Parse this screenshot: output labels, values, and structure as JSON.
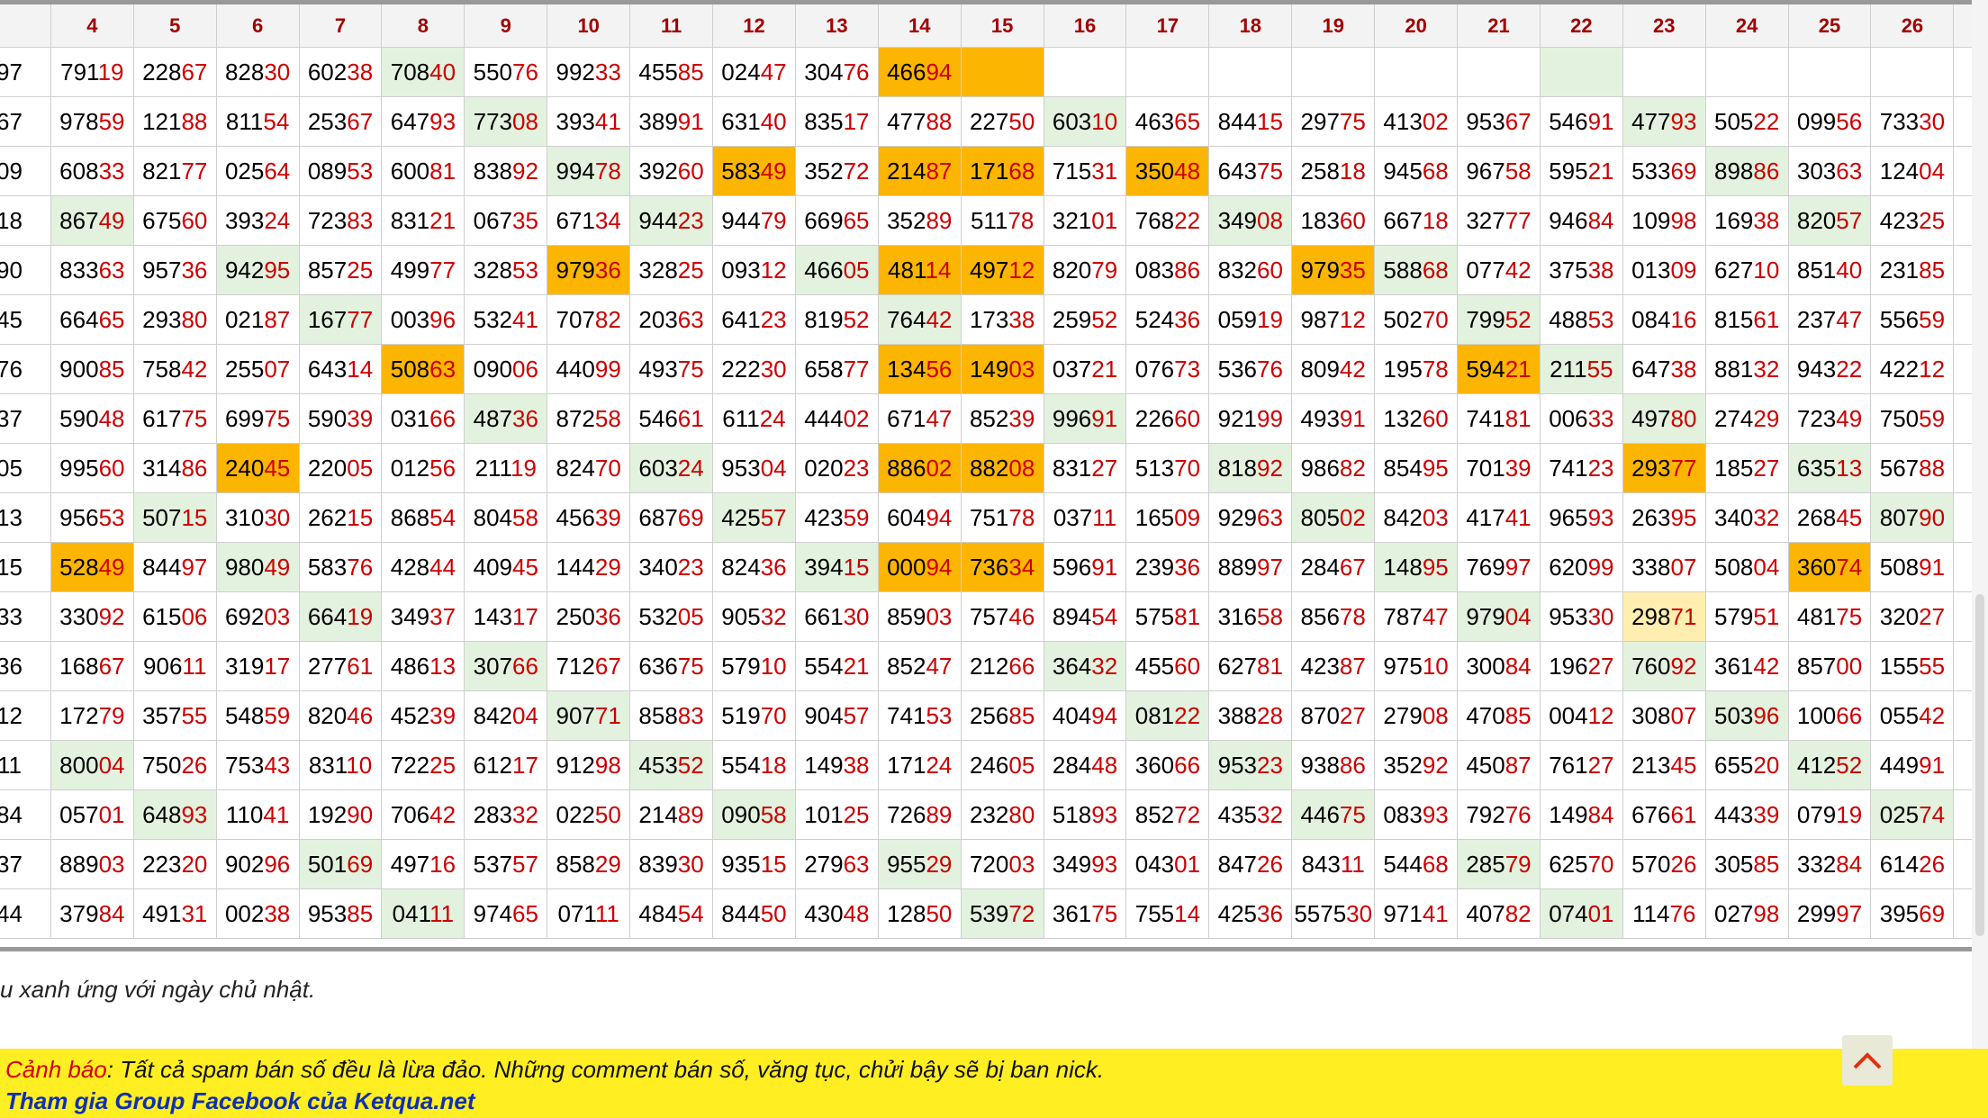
{
  "table": {
    "headers": [
      "",
      "4",
      "5",
      "6",
      "7",
      "8",
      "9",
      "10",
      "11",
      "12",
      "13",
      "14",
      "15",
      "16",
      "17",
      "18",
      "19",
      "20",
      "21",
      "22",
      "23",
      "24",
      "25",
      "26",
      ""
    ],
    "rows": [
      [
        "97",
        "79119",
        "22867",
        "82830",
        "60238",
        "70840",
        "55076",
        "99233",
        "45585",
        "02447",
        "30476",
        "46694",
        "",
        "",
        "",
        "",
        "",
        "",
        "",
        "",
        "",
        "",
        "",
        ""
      ],
      [
        "67",
        "97859",
        "12188",
        "81154",
        "25367",
        "64793",
        "77308",
        "39341",
        "38991",
        "63140",
        "83517",
        "47788",
        "22750",
        "60310",
        "46365",
        "84415",
        "29775",
        "41302",
        "95367",
        "54691",
        "47793",
        "50522",
        "09956",
        "73330"
      ],
      [
        "09",
        "60833",
        "82177",
        "02564",
        "08953",
        "60081",
        "83892",
        "99478",
        "39260",
        "58349",
        "35272",
        "21487",
        "17168",
        "71531",
        "35048",
        "64375",
        "25818",
        "94568",
        "96758",
        "59521",
        "53369",
        "89886",
        "30363",
        "12404"
      ],
      [
        "18",
        "86749",
        "67560",
        "39324",
        "72383",
        "83121",
        "06735",
        "67134",
        "94423",
        "94479",
        "66965",
        "35289",
        "51178",
        "32101",
        "76822",
        "34908",
        "18360",
        "66718",
        "32777",
        "94684",
        "10998",
        "16938",
        "82057",
        "42325"
      ],
      [
        "90",
        "83363",
        "95736",
        "94295",
        "85725",
        "49977",
        "32853",
        "97936",
        "32825",
        "09312",
        "46605",
        "48114",
        "49712",
        "82079",
        "08386",
        "83260",
        "97935",
        "58868",
        "07742",
        "37538",
        "01309",
        "62710",
        "85140",
        "23185"
      ],
      [
        "45",
        "66465",
        "29380",
        "02187",
        "16777",
        "00396",
        "53241",
        "70782",
        "20363",
        "64123",
        "81952",
        "76442",
        "17338",
        "25952",
        "52436",
        "05919",
        "98712",
        "50270",
        "79952",
        "48853",
        "08416",
        "81561",
        "23747",
        "55659"
      ],
      [
        "76",
        "90085",
        "75842",
        "25507",
        "64314",
        "50863",
        "09006",
        "44099",
        "49375",
        "22230",
        "65877",
        "13456",
        "14903",
        "03721",
        "07673",
        "53676",
        "80942",
        "19578",
        "59421",
        "21155",
        "64738",
        "88132",
        "94322",
        "42212"
      ],
      [
        "37",
        "59048",
        "61775",
        "69975",
        "59039",
        "03166",
        "48736",
        "87258",
        "54661",
        "61124",
        "44402",
        "67147",
        "85239",
        "99691",
        "22660",
        "92199",
        "49391",
        "13260",
        "74181",
        "00633",
        "49780",
        "27429",
        "72349",
        "75059"
      ],
      [
        "05",
        "99560",
        "31486",
        "24045",
        "22005",
        "01256",
        "21119",
        "82470",
        "60324",
        "95304",
        "02023",
        "88602",
        "88208",
        "83127",
        "51370",
        "81892",
        "98682",
        "85495",
        "70139",
        "74123",
        "29377",
        "18527",
        "63513",
        "56788"
      ],
      [
        "13",
        "95653",
        "50715",
        "31030",
        "26215",
        "86854",
        "80458",
        "45639",
        "68769",
        "42557",
        "42359",
        "60494",
        "75178",
        "03711",
        "16509",
        "92963",
        "80502",
        "84203",
        "41741",
        "96593",
        "26395",
        "34032",
        "26845",
        "80790"
      ],
      [
        "15",
        "52849",
        "84497",
        "98049",
        "58376",
        "42844",
        "40945",
        "14429",
        "34023",
        "82436",
        "39415",
        "00094",
        "73634",
        "59691",
        "23936",
        "88997",
        "28467",
        "14895",
        "76997",
        "62099",
        "33807",
        "50804",
        "36074",
        "50891"
      ],
      [
        "33",
        "33092",
        "61506",
        "69203",
        "66419",
        "34937",
        "14317",
        "25036",
        "53205",
        "90532",
        "66130",
        "85903",
        "75746",
        "89454",
        "57581",
        "31658",
        "85678",
        "78747",
        "97904",
        "95330",
        "29871",
        "57951",
        "48175",
        "32027"
      ],
      [
        "36",
        "16867",
        "90611",
        "31917",
        "27761",
        "48613",
        "30766",
        "71267",
        "63675",
        "57910",
        "55421",
        "85247",
        "21266",
        "36432",
        "45560",
        "62781",
        "42387",
        "97510",
        "30084",
        "19627",
        "76092",
        "36142",
        "85700",
        "15555"
      ],
      [
        "12",
        "17279",
        "35755",
        "54859",
        "82046",
        "45239",
        "84204",
        "90771",
        "85883",
        "51970",
        "90457",
        "74153",
        "25685",
        "40494",
        "08122",
        "38828",
        "87027",
        "27908",
        "47085",
        "00412",
        "30807",
        "50396",
        "10066",
        "05542"
      ],
      [
        "11",
        "80004",
        "75026",
        "75343",
        "83110",
        "72225",
        "61217",
        "91298",
        "45352",
        "55418",
        "14938",
        "17124",
        "24605",
        "28448",
        "36066",
        "95323",
        "93886",
        "35292",
        "45087",
        "76127",
        "21345",
        "65520",
        "41252",
        "44991"
      ],
      [
        "84",
        "05701",
        "64893",
        "11041",
        "19290",
        "70642",
        "28332",
        "02250",
        "21489",
        "09058",
        "10125",
        "72689",
        "23280",
        "51893",
        "85272",
        "43532",
        "44675",
        "08393",
        "79276",
        "14984",
        "67661",
        "44339",
        "07919",
        "02574"
      ],
      [
        "37",
        "88903",
        "22320",
        "90296",
        "50169",
        "49716",
        "53757",
        "85829",
        "83930",
        "93515",
        "27963",
        "95529",
        "72003",
        "34993",
        "04301",
        "84726",
        "84311",
        "54468",
        "28579",
        "62570",
        "57026",
        "30585",
        "33284",
        "61426"
      ],
      [
        "44",
        "37984",
        "49131",
        "00238",
        "95385",
        "04111",
        "97465",
        "07111",
        "48454",
        "84450",
        "43048",
        "12850",
        "53972",
        "36175",
        "75514",
        "42536",
        "557530",
        "97141",
        "40782",
        "07401",
        "11476",
        "02798",
        "29997",
        "39569"
      ]
    ],
    "highlight_colors": {
      "green": "#e2f2de",
      "orange": "#fcb500",
      "light_yellow": "#ffeeb0"
    }
  },
  "note_text": "u xanh ứng với ngày chủ nhật.",
  "warning": {
    "label": "Cảnh báo",
    "text": ": Tất cả spam bán số đều là lừa đảo. Những comment bán số, văng tục, chửi bậy sẽ bị ban nick."
  },
  "facebook_link": "Tham gia Group Facebook của Ketqua.net",
  "scroll_top_icon": "chevron-up-icon"
}
